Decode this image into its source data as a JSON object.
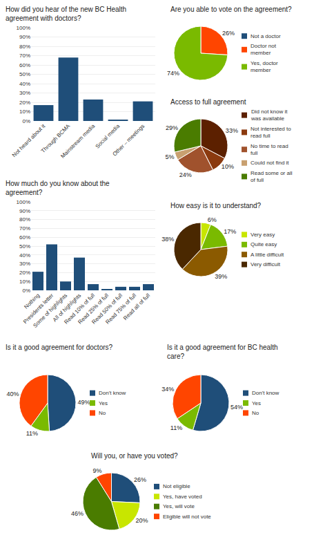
{
  "chart_data": [
    {
      "type": "bar",
      "title": "How did you hear of the new BC Health agreement with doctors?",
      "categories": [
        "Not heard about it",
        "Through BCMA",
        "Mainstream media",
        "Social media",
        "Other – meetings"
      ],
      "values": [
        17,
        68,
        23,
        1,
        21
      ],
      "color": "#1f4e79",
      "ylim": [
        0,
        100
      ],
      "yticks": [
        {
          "value": 0,
          "label": "0%"
        },
        {
          "value": 10,
          "label": "10%"
        },
        {
          "value": 20,
          "label": "20%"
        },
        {
          "value": 30,
          "label": "30%"
        },
        {
          "value": 40,
          "label": "40%"
        },
        {
          "value": 50,
          "label": "50%"
        },
        {
          "value": 60,
          "label": "60%"
        },
        {
          "value": 70,
          "label": "70%"
        },
        {
          "value": 80,
          "label": "80%"
        },
        {
          "value": 90,
          "label": "90%"
        },
        {
          "value": 100,
          "label": "100%"
        }
      ],
      "grid": true
    },
    {
      "type": "pie",
      "title": "Are you able to vote on the agreement?",
      "categories": [
        "Not a doctor",
        "Doctor not\nmember",
        "Yes, doctor\nmember"
      ],
      "values": [
        0,
        26,
        74
      ],
      "value_labels": [
        null,
        "26%",
        "74%"
      ],
      "colors": [
        "#1f4e79",
        "#ff4500",
        "#7aba00"
      ],
      "data_labels": true,
      "legend": "right"
    },
    {
      "type": "pie",
      "title": "Access to full agreement",
      "categories": [
        "Did not know it\nwas available",
        "Not interested to\nread full",
        "No time to read\nfull",
        "Could not find it",
        "Read some or all\nof full"
      ],
      "values": [
        33,
        10,
        24,
        5,
        29
      ],
      "value_labels": [
        "33%",
        "10%",
        "24%",
        "5%",
        "29%"
      ],
      "colors": [
        "#5c2000",
        "#8b3a0f",
        "#a0522d",
        "#c8a070",
        "#4a7c00"
      ],
      "data_labels": true,
      "legend": "right"
    },
    {
      "type": "bar",
      "title": "How much do you know about the agreement?",
      "categories": [
        "Nothing",
        "Presidents letter",
        "Some of highlights",
        "All of highlights",
        "Read 10% of full",
        "Read 25% of full",
        "Read 50% of full",
        "Read 75% of full",
        "Read all of full"
      ],
      "values": [
        21,
        52,
        10,
        37,
        7,
        1,
        4,
        4,
        7
      ],
      "color": "#1f4e79",
      "ylim": [
        0,
        100
      ],
      "yticks": [
        {
          "value": 0,
          "label": "0%"
        },
        {
          "value": 10,
          "label": "10%"
        },
        {
          "value": 20,
          "label": "20%"
        },
        {
          "value": 30,
          "label": "30%"
        },
        {
          "value": 40,
          "label": "40%"
        },
        {
          "value": 50,
          "label": "50%"
        },
        {
          "value": 60,
          "label": "60%"
        },
        {
          "value": 70,
          "label": "70%"
        },
        {
          "value": 80,
          "label": "80%"
        },
        {
          "value": 90,
          "label": "90%"
        },
        {
          "value": 100,
          "label": "100%"
        }
      ],
      "grid": true
    },
    {
      "type": "pie",
      "title": "How easy is it to understand?",
      "categories": [
        "Very easy",
        "Quite easy",
        "A little difficult",
        "Very difficult"
      ],
      "values": [
        6,
        17,
        39,
        38
      ],
      "value_labels": [
        "6%",
        "17%",
        "39%",
        "38%"
      ],
      "colors": [
        "#c8e600",
        "#7aba00",
        "#8b5a00",
        "#4a2800"
      ],
      "data_labels": true,
      "legend": "right"
    },
    {
      "type": "pie",
      "title": "Is it a good agreement for doctors?",
      "categories": [
        "Don't know",
        "Yes",
        "No"
      ],
      "values": [
        49,
        11,
        40
      ],
      "value_labels": [
        "49%",
        "11%",
        "40%"
      ],
      "colors": [
        "#1f4e79",
        "#7aba00",
        "#ff4500"
      ],
      "data_labels": true,
      "legend": "right"
    },
    {
      "type": "pie",
      "title": "Is it a good agreement for BC health care?",
      "categories": [
        "Don't know",
        "Yes",
        "No"
      ],
      "values": [
        54,
        11,
        34
      ],
      "value_labels": [
        "54%",
        "11%",
        "34%"
      ],
      "colors": [
        "#1f4e79",
        "#7aba00",
        "#ff4500"
      ],
      "data_labels": true,
      "legend": "right"
    },
    {
      "type": "pie",
      "title": "Will you, or have you voted?",
      "categories": [
        "Not eligible",
        "Yes, have voted",
        "Yes, will vote",
        "Eligible will not vote"
      ],
      "values": [
        26,
        20,
        46,
        9
      ],
      "value_labels": [
        "26%",
        "20%",
        "46%",
        "9%"
      ],
      "colors": [
        "#1f4e79",
        "#c8e600",
        "#4a7c00",
        "#ff4500"
      ],
      "data_labels": true,
      "legend": "right"
    }
  ]
}
